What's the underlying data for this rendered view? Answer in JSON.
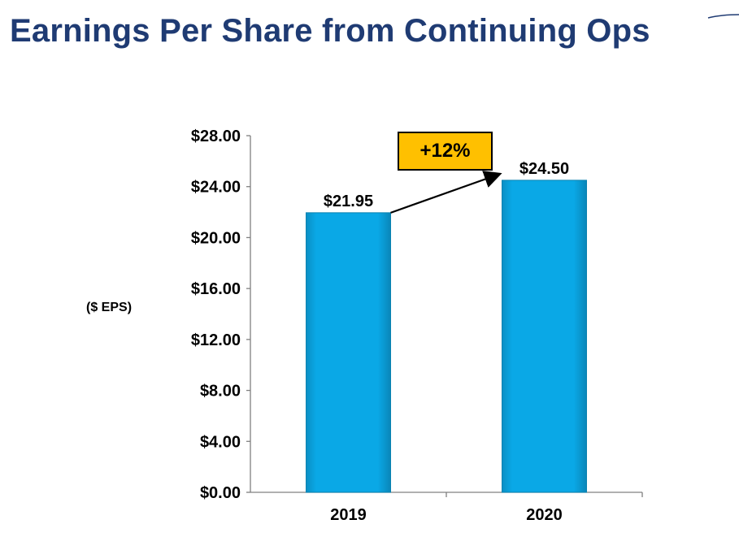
{
  "title": "Earnings Per Share from Continuing Ops",
  "colors": {
    "title": "#1f3b73",
    "bar": "#0aa8e6",
    "callout": "#ffc000"
  },
  "chart_data": {
    "type": "bar",
    "categories": [
      "2019",
      "2020"
    ],
    "values": [
      21.95,
      24.5
    ],
    "data_labels": [
      "$21.95",
      "$24.50"
    ],
    "ylabel": "($ EPS)",
    "ylim": [
      0,
      28
    ],
    "yticks": [
      0,
      4,
      8,
      12,
      16,
      20,
      24,
      28
    ],
    "ytick_labels": [
      "$0.00",
      "$4.00",
      "$8.00",
      "$12.00",
      "$16.00",
      "$20.00",
      "$24.00",
      "$28.00"
    ],
    "grid": false,
    "annotation": {
      "text": "+12%",
      "from": "2019",
      "to": "2020"
    }
  }
}
